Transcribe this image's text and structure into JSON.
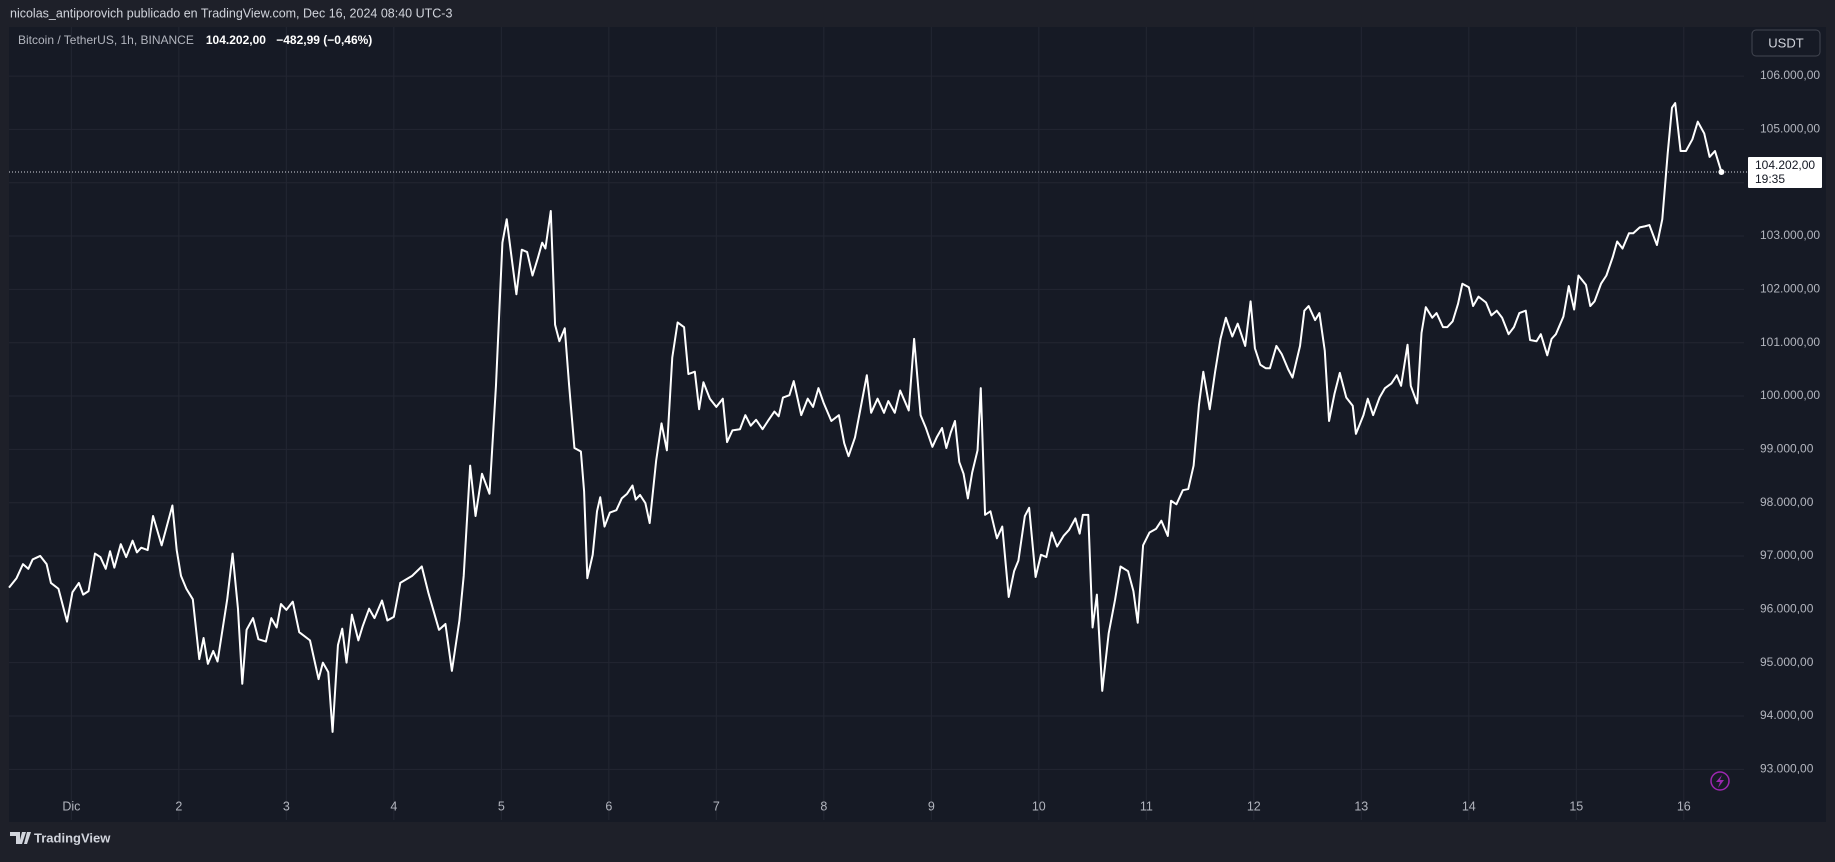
{
  "attribution": "nicolas_antiporovich publicado en TradingView.com, Dec 16, 2024 08:40 UTC-3",
  "brand": "TradingView",
  "chart_data": {
    "type": "line",
    "title": "Bitcoin / TetherUS, 1h, BINANCE",
    "last_value_label": "104.202,00",
    "change_label": "−482,99 (−0,46%)",
    "currency": "USDT",
    "color": "#ffffff",
    "grid": true,
    "last_price": {
      "value": 104202,
      "label": "104.202,00"
    },
    "countdown": "19:35",
    "xlim": [
      0.42,
      16.56
    ],
    "ylim": [
      92050,
      106920
    ],
    "xticks": [
      {
        "value": 1,
        "label": "Dic"
      },
      2,
      3,
      4,
      5,
      6,
      7,
      8,
      9,
      10,
      11,
      12,
      13,
      14,
      15,
      16
    ],
    "yticks": [
      {
        "value": 93000,
        "label": "93.000,00"
      },
      {
        "value": 94000,
        "label": "94.000,00"
      },
      {
        "value": 95000,
        "label": "95.000,00"
      },
      {
        "value": 96000,
        "label": "96.000,00"
      },
      {
        "value": 97000,
        "label": "97.000,00"
      },
      {
        "value": 98000,
        "label": "98.000,00"
      },
      {
        "value": 99000,
        "label": "99.000,00"
      },
      {
        "value": 100000,
        "label": "100.000,00"
      },
      {
        "value": 101000,
        "label": "101.000,00"
      },
      {
        "value": 102000,
        "label": "102.000,00"
      },
      {
        "value": 103000,
        "label": "103.000,00"
      },
      {
        "value": 104000,
        "label": "104.000,00"
      },
      {
        "value": 105000,
        "label": "105.000,00"
      },
      {
        "value": 106000,
        "label": "106.000,00"
      }
    ],
    "x": [
      0.42,
      0.49,
      0.55,
      0.6,
      0.64,
      0.71,
      0.77,
      0.81,
      0.88,
      0.96,
      1.01,
      1.07,
      1.11,
      1.16,
      1.22,
      1.27,
      1.32,
      1.36,
      1.4,
      1.46,
      1.51,
      1.57,
      1.61,
      1.65,
      1.71,
      1.76,
      1.84,
      1.94,
      1.98,
      2.02,
      2.07,
      2.13,
      2.19,
      2.23,
      2.27,
      2.32,
      2.36,
      2.45,
      2.5,
      2.55,
      2.59,
      2.63,
      2.69,
      2.74,
      2.81,
      2.86,
      2.91,
      2.95,
      3.0,
      3.06,
      3.12,
      3.22,
      3.3,
      3.34,
      3.39,
      3.43,
      3.48,
      3.52,
      3.56,
      3.61,
      3.67,
      3.71,
      3.77,
      3.82,
      3.89,
      3.94,
      4.0,
      4.06,
      4.17,
      4.26,
      4.32,
      4.42,
      4.48,
      4.54,
      4.61,
      4.65,
      4.71,
      4.76,
      4.82,
      4.89,
      4.95,
      5.01,
      5.05,
      5.1,
      5.14,
      5.19,
      5.24,
      5.29,
      5.34,
      5.38,
      5.41,
      5.46,
      5.5,
      5.54,
      5.59,
      5.63,
      5.68,
      5.74,
      5.77,
      5.8,
      5.85,
      5.89,
      5.92,
      5.96,
      6.01,
      6.07,
      6.12,
      6.17,
      6.22,
      6.25,
      6.29,
      6.34,
      6.38,
      6.44,
      6.49,
      6.54,
      6.59,
      6.64,
      6.7,
      6.74,
      6.8,
      6.84,
      6.88,
      6.94,
      7.0,
      7.06,
      7.1,
      7.15,
      7.22,
      7.27,
      7.32,
      7.37,
      7.43,
      7.48,
      7.54,
      7.58,
      7.62,
      7.68,
      7.72,
      7.79,
      7.85,
      7.9,
      7.95,
      8.0,
      8.07,
      8.14,
      8.19,
      8.23,
      8.29,
      8.34,
      8.4,
      8.44,
      8.5,
      8.56,
      8.6,
      8.66,
      8.71,
      8.79,
      8.84,
      8.9,
      8.95,
      9.01,
      9.05,
      9.1,
      9.14,
      9.18,
      9.22,
      9.26,
      9.3,
      9.34,
      9.38,
      9.43,
      9.46,
      9.5,
      9.55,
      9.61,
      9.66,
      9.72,
      9.77,
      9.81,
      9.87,
      9.91,
      9.97,
      10.02,
      10.07,
      10.12,
      10.17,
      10.23,
      10.28,
      10.34,
      10.38,
      10.41,
      10.46,
      10.5,
      10.54,
      10.59,
      10.65,
      10.71,
      10.76,
      10.83,
      10.88,
      10.92,
      10.97,
      11.03,
      11.09,
      11.14,
      11.2,
      11.23,
      11.28,
      11.34,
      11.39,
      11.44,
      11.49,
      11.53,
      11.59,
      11.64,
      11.69,
      11.74,
      11.8,
      11.85,
      11.92,
      11.97,
      12.01,
      12.06,
      12.11,
      12.15,
      12.21,
      12.26,
      12.32,
      12.36,
      12.43,
      12.47,
      12.51,
      12.57,
      12.61,
      12.66,
      12.7,
      12.75,
      12.8,
      12.86,
      12.92,
      12.95,
      13.02,
      13.06,
      13.11,
      13.17,
      13.22,
      13.28,
      13.33,
      13.37,
      13.43,
      13.46,
      13.52,
      13.56,
      13.6,
      13.66,
      13.7,
      13.76,
      13.8,
      13.85,
      13.9,
      13.94,
      14.0,
      14.04,
      14.09,
      14.16,
      14.21,
      14.26,
      14.31,
      14.37,
      14.42,
      14.47,
      14.53,
      14.57,
      14.63,
      14.67,
      14.73,
      14.77,
      14.81,
      14.88,
      14.93,
      14.98,
      15.02,
      15.09,
      15.13,
      15.17,
      15.23,
      15.28,
      15.34,
      15.38,
      15.43,
      15.49,
      15.53,
      15.59,
      15.64,
      15.68,
      15.75,
      15.8,
      15.85,
      15.89,
      15.92,
      15.97,
      16.02,
      16.08,
      16.13,
      16.19,
      16.24,
      16.29,
      16.35
    ],
    "values": [
      96408,
      96584,
      96848,
      96760,
      96936,
      97002,
      96848,
      96496,
      96386,
      95770,
      96320,
      96496,
      96276,
      96342,
      97046,
      96980,
      96760,
      97090,
      96782,
      97222,
      96980,
      97288,
      97068,
      97156,
      97112,
      97750,
      97200,
      97948,
      97112,
      96628,
      96386,
      96188,
      95066,
      95462,
      94978,
      95220,
      95022,
      96188,
      97046,
      96012,
      94604,
      95616,
      95836,
      95440,
      95396,
      95836,
      95660,
      96100,
      95990,
      96144,
      95572,
      95418,
      94692,
      95000,
      94824,
      93702,
      95330,
      95638,
      95000,
      95902,
      95418,
      95682,
      96012,
      95836,
      96166,
      95792,
      95858,
      96496,
      96628,
      96804,
      96320,
      95616,
      95726,
      94846,
      95792,
      96628,
      98696,
      97750,
      98542,
      98168,
      100192,
      102876,
      103316,
      102524,
      101908,
      102744,
      102700,
      102260,
      102590,
      102876,
      102766,
      103470,
      101336,
      101028,
      101270,
      100214,
      99026,
      98960,
      98212,
      96584,
      97024,
      97838,
      98102,
      97552,
      97816,
      97860,
      98080,
      98168,
      98322,
      98058,
      98146,
      97992,
      97618,
      98784,
      99488,
      98982,
      100720,
      101380,
      101292,
      100412,
      100456,
      99752,
      100258,
      99950,
      99796,
      99950,
      99136,
      99356,
      99378,
      99642,
      99444,
      99554,
      99378,
      99532,
      99708,
      99620,
      99972,
      100016,
      100280,
      99642,
      99950,
      99796,
      100148,
      99862,
      99532,
      99642,
      99114,
      98872,
      99224,
      99752,
      100390,
      99686,
      99950,
      99686,
      99906,
      99686,
      100104,
      99730,
      101072,
      99642,
      99400,
      99048,
      99224,
      99400,
      99026,
      99312,
      99532,
      98762,
      98542,
      98080,
      98564,
      98982,
      100148,
      97772,
      97838,
      97332,
      97552,
      96232,
      96716,
      96914,
      97750,
      97904,
      96606,
      97024,
      96980,
      97442,
      97178,
      97376,
      97486,
      97706,
      97420,
      97772,
      97772,
      95660,
      96276,
      94472,
      95550,
      96188,
      96804,
      96716,
      96342,
      95748,
      97200,
      97442,
      97508,
      97662,
      97376,
      98036,
      97970,
      98234,
      98256,
      98696,
      99840,
      100456,
      99752,
      100456,
      101072,
      101468,
      101116,
      101358,
      100940,
      101776,
      100896,
      100588,
      100522,
      100522,
      100940,
      100786,
      100500,
      100346,
      100940,
      101600,
      101688,
      101424,
      101556,
      100852,
      99532,
      100038,
      100434,
      99972,
      99818,
      99290,
      99642,
      99950,
      99642,
      99972,
      100148,
      100236,
      100390,
      100192,
      100962,
      100192,
      99862,
      101182,
      101666,
      101468,
      101556,
      101292,
      101292,
      101402,
      101732,
      102106,
      102040,
      101688,
      101864,
      101754,
      101512,
      101600,
      101468,
      101160,
      101292,
      101556,
      101600,
      101050,
      101028,
      101160,
      100764,
      101072,
      101160,
      101490,
      102062,
      101622,
      102260,
      102084,
      101688,
      101776,
      102106,
      102260,
      102612,
      102898,
      102766,
      103052,
      103052,
      103162,
      103184,
      103206,
      102832,
      103316,
      104548,
      105406,
      105494,
      104594,
      104594,
      104814,
      105144,
      104924,
      104484,
      104594,
      104202
    ]
  }
}
